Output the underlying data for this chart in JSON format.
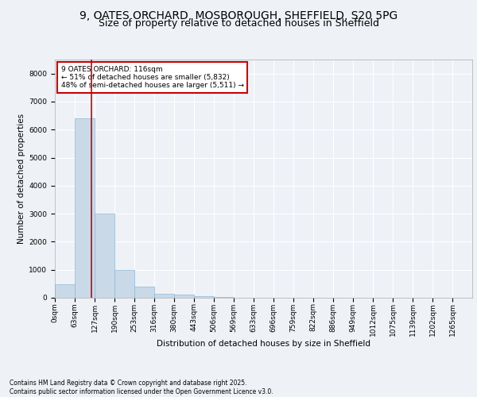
{
  "title_line1": "9, OATES ORCHARD, MOSBOROUGH, SHEFFIELD, S20 5PG",
  "title_line2": "Size of property relative to detached houses in Sheffield",
  "xlabel": "Distribution of detached houses by size in Sheffield",
  "ylabel": "Number of detached properties",
  "bar_color": "#c9d9e8",
  "bar_edge_color": "#8fb8d4",
  "vline_color": "#cc0000",
  "annotation_text": "9 OATES ORCHARD: 116sqm\n← 51% of detached houses are smaller (5,832)\n48% of semi-detached houses are larger (5,511) →",
  "annotation_box_color": "#cc0000",
  "categories": [
    "0sqm",
    "63sqm",
    "127sqm",
    "190sqm",
    "253sqm",
    "316sqm",
    "380sqm",
    "443sqm",
    "506sqm",
    "569sqm",
    "633sqm",
    "696sqm",
    "759sqm",
    "822sqm",
    "886sqm",
    "949sqm",
    "1012sqm",
    "1075sqm",
    "1139sqm",
    "1202sqm",
    "1265sqm"
  ],
  "bar_heights": [
    490,
    6400,
    3000,
    1000,
    400,
    150,
    100,
    50,
    20,
    5,
    2,
    1,
    0,
    0,
    0,
    0,
    0,
    0,
    0,
    0,
    0
  ],
  "ylim": [
    0,
    8500
  ],
  "yticks": [
    0,
    1000,
    2000,
    3000,
    4000,
    5000,
    6000,
    7000,
    8000
  ],
  "background_color": "#eef2f7",
  "plot_background": "#eef2f7",
  "grid_color": "#ffffff",
  "footer_line1": "Contains HM Land Registry data © Crown copyright and database right 2025.",
  "footer_line2": "Contains public sector information licensed under the Open Government Licence v3.0.",
  "title_fontsize": 10,
  "subtitle_fontsize": 9,
  "axis_fontsize": 7.5,
  "tick_fontsize": 6.5,
  "footer_fontsize": 5.5
}
